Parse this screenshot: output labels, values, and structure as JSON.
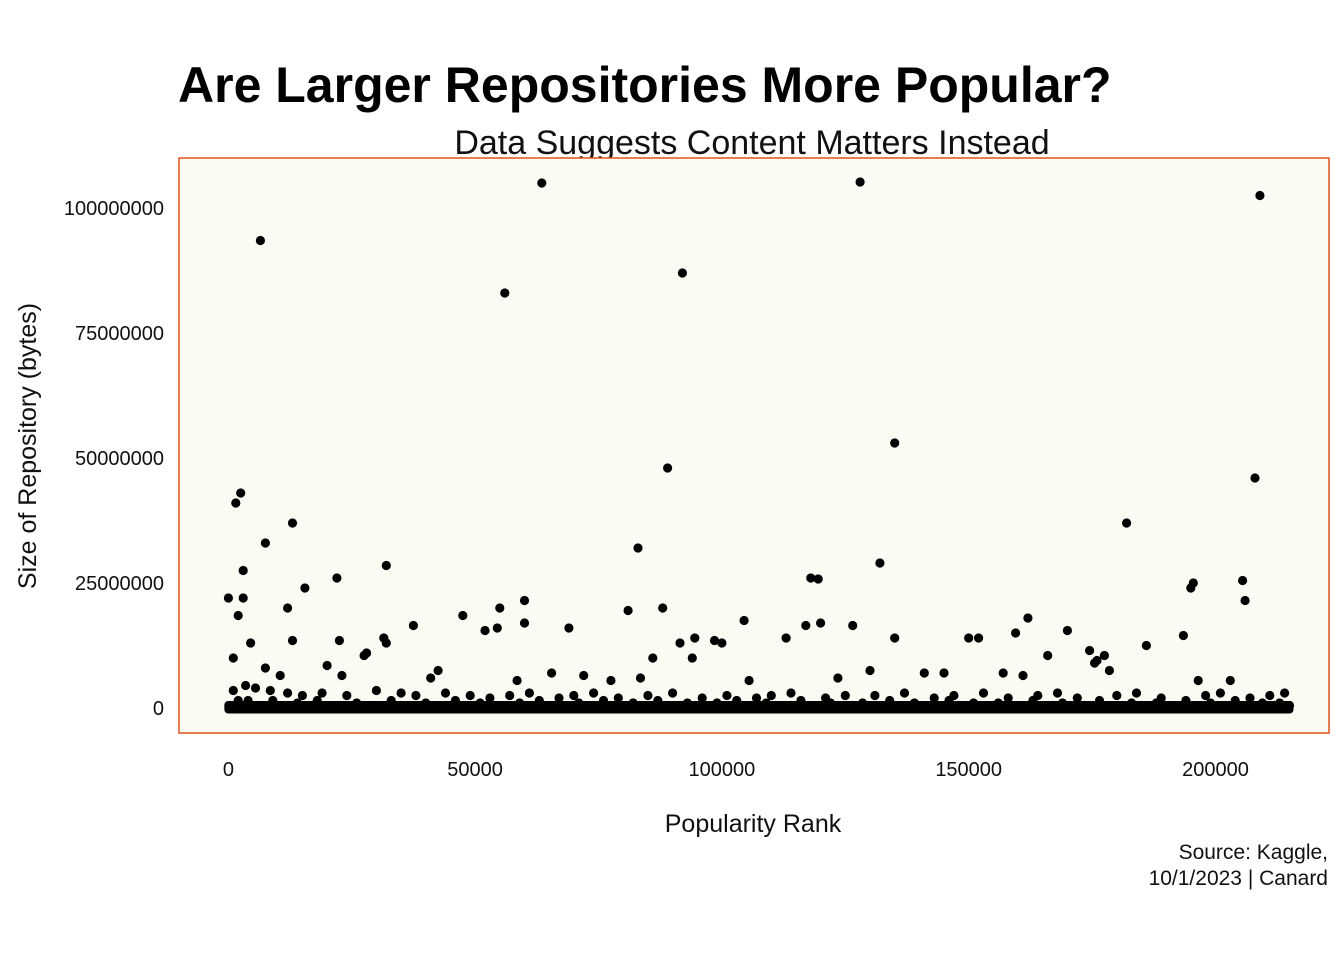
{
  "chart_data": {
    "type": "scatter",
    "title": "Are Larger Repositories More Popular?",
    "subtitle": "Data Suggests Content Matters Instead",
    "xlabel": "Popularity Rank",
    "ylabel": "Size of Repository (bytes)",
    "caption_lines": [
      "Source: Kaggle,",
      "10/1/2023 | Canard"
    ],
    "xlim": [
      -10000,
      223000
    ],
    "ylim": [
      -5000000,
      110000000
    ],
    "x_ticks": [
      0,
      50000,
      100000,
      150000,
      200000
    ],
    "x_tick_labels": [
      "0",
      "50000",
      "100000",
      "150000",
      "200000"
    ],
    "y_ticks": [
      0,
      25000000,
      50000000,
      75000000,
      100000000
    ],
    "y_tick_labels": [
      "0",
      "25000000",
      "50000000",
      "75000000",
      "100000000"
    ],
    "grid": false,
    "legend": "none",
    "colors": {
      "panel_bg": "#fbfaf3",
      "panel_border": "#e0541c",
      "point": "#000000"
    },
    "series": [
      {
        "x": [
          6500,
          63500,
          128000,
          209000,
          56000,
          92000,
          135000,
          89000,
          208000,
          2500,
          1500,
          7500,
          13000,
          182000,
          83000,
          32000,
          132000,
          3000,
          22000,
          195500,
          205500,
          195000,
          3000,
          15500,
          118000,
          119500,
          0,
          60000,
          206000,
          88000,
          55000,
          12000,
          81000,
          2000,
          60000,
          120000,
          117000,
          54500,
          126500,
          69000,
          52000,
          47500,
          37500,
          162000,
          13000,
          104500,
          22500,
          4500,
          159500,
          170000,
          113000,
          135000,
          193500,
          150000,
          94500,
          152000,
          1000,
          7500,
          100000,
          98500,
          91500,
          186000,
          31500,
          32000,
          28000,
          166000,
          174500,
          27500,
          177500,
          176000,
          65500,
          94000,
          86000,
          42500,
          130000,
          145000,
          157000,
          161000,
          10500,
          20000,
          175500,
          178500,
          72000,
          77500,
          83500,
          105500,
          123500,
          141000,
          196500,
          203000,
          23000,
          41000,
          58500,
          1000,
          3500,
          5500,
          8500,
          12000,
          15000,
          19000,
          24000,
          30000,
          35000,
          38000,
          44000,
          49000,
          53000,
          57000,
          61000,
          67000,
          70000,
          74000,
          79000,
          85000,
          90000,
          96000,
          101000,
          107000,
          110000,
          114000,
          121000,
          125000,
          131000,
          137000,
          143000,
          147000,
          153000,
          158000,
          164000,
          168000,
          172000,
          180000,
          184000,
          189000,
          198000,
          201000,
          207000,
          211000,
          214000,
          2000,
          4000,
          9000,
          14000,
          18000,
          26000,
          33000,
          40000,
          46000,
          51000,
          59000,
          63000,
          71000,
          76000,
          82000,
          87000,
          93000,
          99000,
          103000,
          109000,
          116000,
          122000,
          128500,
          134000,
          139000,
          146000,
          151000,
          156000,
          163000,
          169000,
          176500,
          183000,
          188000,
          194000,
          199000,
          204000,
          209500,
          213000,
          215000,
          500,
          6000,
          11000,
          17000,
          25000,
          29000,
          36000,
          43000,
          48000,
          56500,
          62000,
          66000,
          73000,
          80000,
          86500,
          95000,
          102000,
          108000,
          112000,
          118500,
          124000,
          133000,
          140000,
          148000,
          155000,
          160000,
          167000,
          173000,
          179000,
          185000,
          191000,
          197000,
          202000,
          206500,
          210000,
          212000
        ],
        "y": [
          93500000,
          105000000,
          105200000,
          102500000,
          83000000,
          87000000,
          53000000,
          48000000,
          46000000,
          43000000,
          41000000,
          33000000,
          37000000,
          37000000,
          32000000,
          28500000,
          29000000,
          27500000,
          26000000,
          25000000,
          25500000,
          24000000,
          22000000,
          24000000,
          26000000,
          25800000,
          22000000,
          21500000,
          21500000,
          20000000,
          20000000,
          20000000,
          19500000,
          18500000,
          17000000,
          17000000,
          16500000,
          16000000,
          16500000,
          16000000,
          15500000,
          18500000,
          16500000,
          18000000,
          13500000,
          17500000,
          13500000,
          13000000,
          15000000,
          15500000,
          14000000,
          14000000,
          14500000,
          14000000,
          14000000,
          14000000,
          10000000,
          8000000,
          13000000,
          13500000,
          13000000,
          12500000,
          14000000,
          13000000,
          11000000,
          10500000,
          11500000,
          10500000,
          10500000,
          9500000,
          7000000,
          10000000,
          10000000,
          7500000,
          7500000,
          7000000,
          7000000,
          6500000,
          6500000,
          8500000,
          9000000,
          7500000,
          6500000,
          5500000,
          6000000,
          5500000,
          6000000,
          7000000,
          5500000,
          5500000,
          6500000,
          6000000,
          5500000,
          3500000,
          4500000,
          4000000,
          3500000,
          3000000,
          2500000,
          3000000,
          2500000,
          3500000,
          3000000,
          2500000,
          3000000,
          2500000,
          2000000,
          2500000,
          3000000,
          2000000,
          2500000,
          3000000,
          2000000,
          2500000,
          3000000,
          2000000,
          2500000,
          2000000,
          2500000,
          3000000,
          2000000,
          2500000,
          2500000,
          3000000,
          2000000,
          2500000,
          3000000,
          2000000,
          2500000,
          3000000,
          2000000,
          2500000,
          3000000,
          2000000,
          2500000,
          3000000,
          2000000,
          2500000,
          3000000,
          1500000,
          1500000,
          1500000,
          1000000,
          1500000,
          1000000,
          1500000,
          1000000,
          1500000,
          1000000,
          1000000,
          1500000,
          1000000,
          1500000,
          1000000,
          1500000,
          1000000,
          1000000,
          1500000,
          1000000,
          1500000,
          1000000,
          1000000,
          1500000,
          1000000,
          1500000,
          1000000,
          1000000,
          1500000,
          1000000,
          1500000,
          1000000,
          1000000,
          1500000,
          1000000,
          1500000,
          1000000,
          1000000,
          500000,
          500000,
          500000,
          400000,
          500000,
          300000,
          500000,
          400000,
          300000,
          500000,
          400000,
          300000,
          500000,
          400000,
          300000,
          500000,
          400000,
          300000,
          500000,
          400000,
          300000,
          500000,
          400000,
          300000,
          500000,
          400000,
          300000,
          500000,
          400000,
          300000,
          500000,
          400000,
          300000,
          500000,
          400000,
          300000,
          500000
        ]
      }
    ]
  }
}
